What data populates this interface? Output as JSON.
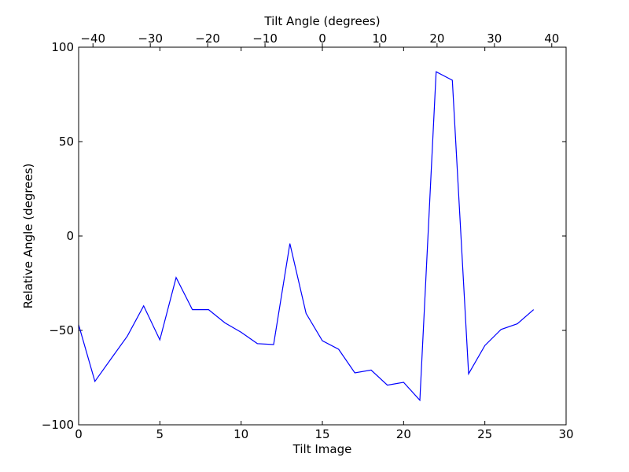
{
  "chart_data": {
    "type": "line",
    "title": "",
    "xlabel": "Tilt Image",
    "ylabel": "Relative Angle (degrees)",
    "top_xlabel": "Tilt Angle (degrees)",
    "xlim": [
      0,
      30
    ],
    "ylim": [
      -100,
      100
    ],
    "top_xlim": [
      -42.5,
      42.5
    ],
    "xticks": [
      0,
      5,
      10,
      15,
      20,
      25,
      30
    ],
    "yticks": [
      -100,
      -50,
      0,
      50,
      100
    ],
    "top_xticks": [
      -40,
      -30,
      -20,
      -10,
      0,
      10,
      20,
      30,
      40
    ],
    "xtick_labels": [
      "0",
      "5",
      "10",
      "15",
      "20",
      "25",
      "30"
    ],
    "ytick_labels": [
      "−100",
      "−50",
      "0",
      "50",
      "100"
    ],
    "top_xtick_labels": [
      "−40",
      "−30",
      "−20",
      "−10",
      "0",
      "10",
      "20",
      "30",
      "40"
    ],
    "grid": false,
    "line_color": "#0000ff",
    "series": [
      {
        "x": [
          0,
          1,
          2,
          3,
          4,
          5,
          6,
          7,
          8,
          9,
          10,
          11,
          12,
          13,
          14,
          15,
          16,
          17,
          18,
          19,
          20,
          21,
          22,
          23,
          24,
          25,
          26,
          27,
          28
        ],
        "values": [
          -47,
          -77,
          -65,
          -53,
          -37,
          -55,
          -22,
          -39,
          -39,
          -46,
          -51,
          -57,
          -57.5,
          -4,
          -41,
          -55.5,
          -60,
          -72.5,
          -71,
          -79,
          -77.5,
          -87,
          87,
          82.5,
          -73,
          -58,
          -49.5,
          -46.5,
          -39
        ]
      }
    ]
  }
}
